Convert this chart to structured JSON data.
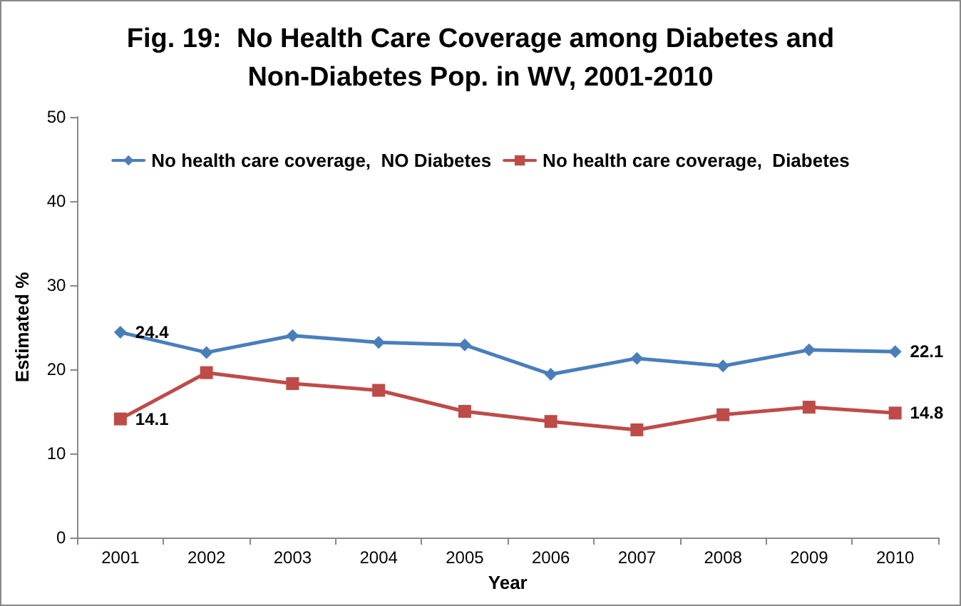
{
  "chart_data": {
    "type": "line",
    "title": "Fig. 19:  No Health Care Coverage among Diabetes and\nNon-Diabetes Pop. in WV, 2001-2010",
    "xlabel": "Year",
    "ylabel": "Estimated %",
    "categories": [
      "2001",
      "2002",
      "2003",
      "2004",
      "2005",
      "2006",
      "2007",
      "2008",
      "2009",
      "2010"
    ],
    "series": [
      {
        "name": "No health care coverage,  NO Diabetes",
        "color": "#4a7ebb",
        "marker": "diamond",
        "values": [
          24.4,
          22.0,
          24.0,
          23.2,
          22.9,
          19.4,
          21.3,
          20.4,
          22.3,
          22.1
        ],
        "value_labels": [
          "24.4",
          null,
          null,
          null,
          null,
          null,
          null,
          null,
          null,
          "22.1"
        ]
      },
      {
        "name": "No health care coverage,  Diabetes",
        "color": "#be4b48",
        "marker": "square",
        "values": [
          14.1,
          19.6,
          18.3,
          17.5,
          15.0,
          13.8,
          12.8,
          14.6,
          15.5,
          14.8
        ],
        "value_labels": [
          "14.1",
          null,
          null,
          null,
          null,
          null,
          null,
          null,
          null,
          "14.8"
        ]
      }
    ],
    "ylim": [
      0,
      50
    ],
    "yticks": [
      0,
      10,
      20,
      30,
      40,
      50
    ],
    "grid": false,
    "legend": "top",
    "line_style": "solid"
  }
}
